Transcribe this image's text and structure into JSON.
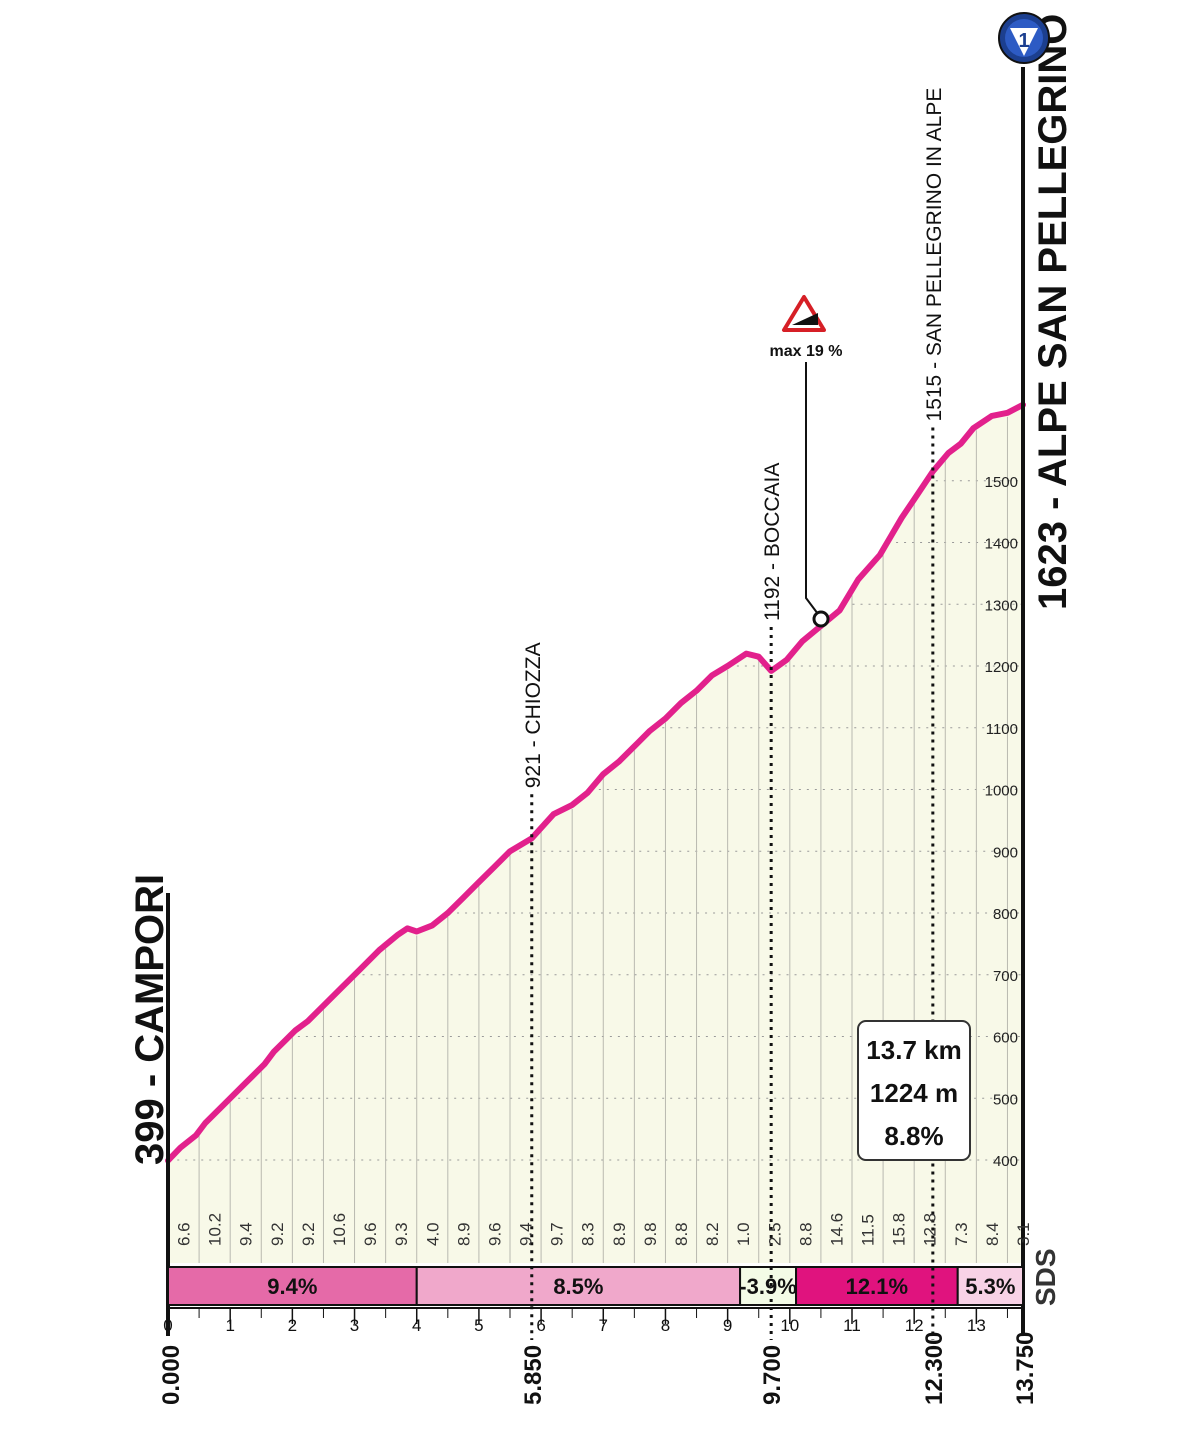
{
  "chart_data": {
    "type": "area",
    "start": {
      "altitude": "399",
      "name": "CAMPORI",
      "label": "399 - CAMPORI",
      "km": "0.000"
    },
    "finish": {
      "altitude": "1623",
      "name": "ALPE SAN PELLEGRINO",
      "label": "1623 - ALPE SAN PELLEGRINO",
      "km": "13.750"
    },
    "finish_icon": "gpm-summit-icon",
    "xlim": [
      0,
      13.75
    ],
    "ylim": [
      300,
      1700
    ],
    "x_axis_ticks": [
      "0",
      "1",
      "2",
      "3",
      "4",
      "5",
      "6",
      "7",
      "8",
      "9",
      "10",
      "11",
      "12",
      "13"
    ],
    "y_axis_ticks": [
      "400",
      "500",
      "600",
      "700",
      "800",
      "900",
      "1000",
      "1100",
      "1200",
      "1300",
      "1400",
      "1500"
    ],
    "profile": [
      [
        0.0,
        399
      ],
      [
        0.2,
        420
      ],
      [
        0.45,
        440
      ],
      [
        0.6,
        460
      ],
      [
        0.85,
        485
      ],
      [
        1.0,
        500
      ],
      [
        1.2,
        520
      ],
      [
        1.4,
        540
      ],
      [
        1.55,
        555
      ],
      [
        1.7,
        575
      ],
      [
        1.9,
        595
      ],
      [
        2.05,
        610
      ],
      [
        2.25,
        625
      ],
      [
        2.5,
        650
      ],
      [
        2.8,
        680
      ],
      [
        3.1,
        710
      ],
      [
        3.4,
        740
      ],
      [
        3.7,
        765
      ],
      [
        3.85,
        775
      ],
      [
        4.0,
        770
      ],
      [
        4.25,
        780
      ],
      [
        4.5,
        800
      ],
      [
        4.75,
        825
      ],
      [
        5.0,
        850
      ],
      [
        5.25,
        875
      ],
      [
        5.5,
        900
      ],
      [
        5.85,
        921
      ],
      [
        6.2,
        960
      ],
      [
        6.5,
        975
      ],
      [
        6.75,
        995
      ],
      [
        7.0,
        1025
      ],
      [
        7.25,
        1045
      ],
      [
        7.5,
        1070
      ],
      [
        7.75,
        1095
      ],
      [
        8.0,
        1115
      ],
      [
        8.25,
        1140
      ],
      [
        8.5,
        1160
      ],
      [
        8.75,
        1185
      ],
      [
        9.0,
        1200
      ],
      [
        9.3,
        1220
      ],
      [
        9.5,
        1215
      ],
      [
        9.7,
        1192
      ],
      [
        9.95,
        1210
      ],
      [
        10.2,
        1240
      ],
      [
        10.5,
        1265
      ],
      [
        10.8,
        1290
      ],
      [
        11.1,
        1340
      ],
      [
        11.45,
        1380
      ],
      [
        11.8,
        1440
      ],
      [
        12.0,
        1470
      ],
      [
        12.3,
        1515
      ],
      [
        12.55,
        1545
      ],
      [
        12.75,
        1560
      ],
      [
        12.95,
        1585
      ],
      [
        13.25,
        1605
      ],
      [
        13.5,
        1610
      ],
      [
        13.75,
        1623
      ]
    ],
    "gradients_per_km": [
      "6.6",
      "10.2",
      "9.4",
      "9.2",
      "9.2",
      "10.6",
      "9.6",
      "9.3",
      "4.0",
      "8.9",
      "9.6",
      "9.4",
      "9.7",
      "8.3",
      "8.9",
      "9.8",
      "8.8",
      "8.2",
      "1.0",
      "2.5",
      "8.8",
      "14.6",
      "11.5",
      "15.8",
      "12.8",
      "7.3",
      "8.4",
      "3.1"
    ],
    "sections": [
      {
        "from": 0.0,
        "to": 4.0,
        "label": "9.4%",
        "color": "#e56aa8"
      },
      {
        "from": 4.0,
        "to": 9.2,
        "label": "8.5%",
        "color": "#f0a8cb"
      },
      {
        "from": 9.2,
        "to": 10.1,
        "label": "-3.9%",
        "color": "#f3fbe6"
      },
      {
        "from": 10.1,
        "to": 12.7,
        "label": "12.1%",
        "color": "#e0137e"
      },
      {
        "from": 12.7,
        "to": 13.75,
        "label": "5.3%",
        "color": "#f8d2e6"
      }
    ],
    "waypoints": [
      {
        "km": 5.85,
        "alt": 921,
        "label": "921 - CHIOZZA",
        "km_label": "5.850"
      },
      {
        "km": 9.7,
        "alt": 1192,
        "label": "1192 - BOCCAIA",
        "km_label": "9.700"
      },
      {
        "km": 12.3,
        "alt": 1515,
        "label": "1515 - SAN PELLEGRINO IN ALPE",
        "km_label": "12.300"
      }
    ],
    "max_gradient": {
      "km": 10.8,
      "alt": 1290,
      "label": "max 19 %",
      "icon": "steep-gradient-warning-icon"
    },
    "summary_box": {
      "distance": "13.7 km",
      "elevation": "1224 m",
      "average": "8.8%"
    },
    "logo": "SDS",
    "colors": {
      "profile_line": "#e2218c",
      "fill": "#f8f9e8",
      "grid": "#9a9a9a",
      "axis": "#111111"
    }
  }
}
